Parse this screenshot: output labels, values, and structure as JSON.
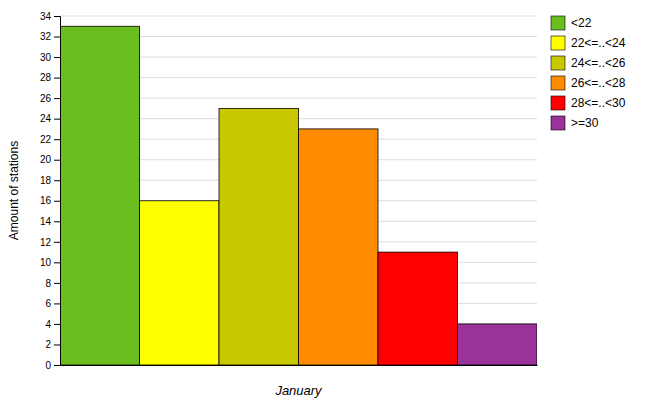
{
  "chart_data": {
    "type": "bar",
    "xlabel": "January",
    "ylabel": "Amount of stations",
    "categories": [
      "<22",
      "22<=..<24",
      "24<=..<26",
      "26<=..<28",
      "28<=..<30",
      ">=30"
    ],
    "values": [
      33,
      16,
      25,
      23,
      11,
      4
    ],
    "colors": [
      "#6abf1e",
      "#ffff00",
      "#c8c800",
      "#ff8c00",
      "#ff0000",
      "#993399"
    ],
    "ylim": [
      0,
      34
    ],
    "yticks": [
      0,
      2,
      4,
      6,
      8,
      10,
      12,
      14,
      16,
      18,
      20,
      22,
      24,
      26,
      28,
      30,
      32,
      34
    ],
    "grid": true,
    "legend": "right",
    "tick_labels": "y"
  }
}
